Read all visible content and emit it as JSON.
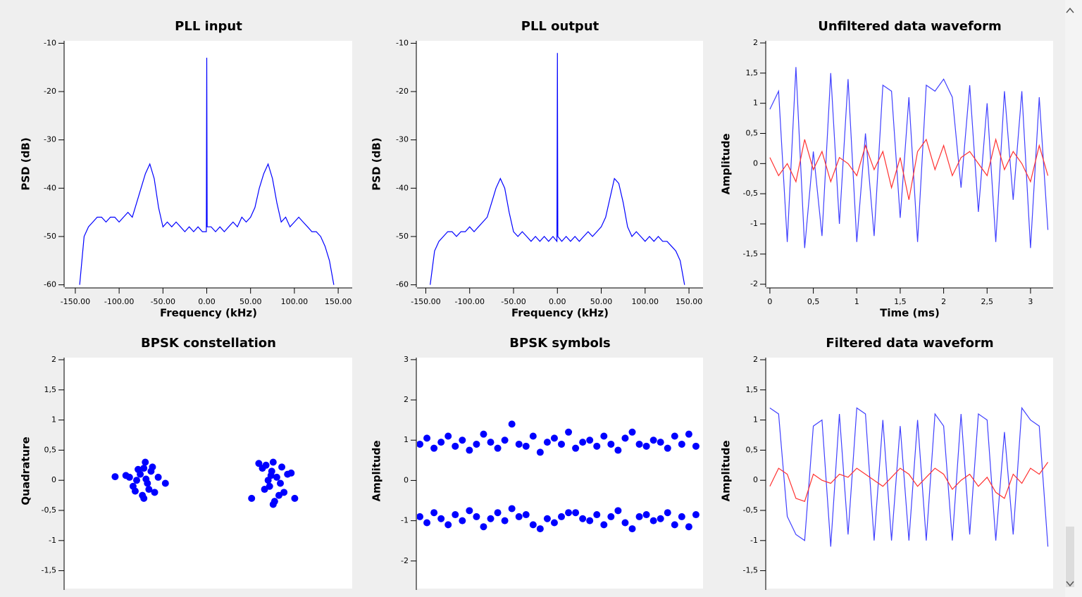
{
  "chart_data": [
    {
      "type": "line",
      "title": "PLL input",
      "xlabel": "Frequency (kHz)",
      "ylabel": "PSD (dB)",
      "x": [
        -145,
        -140,
        -135,
        -130,
        -125,
        -120,
        -115,
        -110,
        -105,
        -100,
        -95,
        -90,
        -85,
        -80,
        -75,
        -70,
        -65,
        -60,
        -55,
        -50,
        -45,
        -40,
        -35,
        -30,
        -25,
        -20,
        -15,
        -10,
        -5,
        -0.5,
        0,
        0.5,
        5,
        10,
        15,
        20,
        25,
        30,
        35,
        40,
        45,
        50,
        55,
        60,
        65,
        70,
        75,
        80,
        85,
        90,
        95,
        100,
        105,
        110,
        115,
        120,
        125,
        130,
        135,
        140,
        145
      ],
      "series": [
        {
          "color": "#0000ff",
          "values": [
            -60,
            -50,
            -48,
            -47,
            -46,
            -46,
            -47,
            -46,
            -46,
            -47,
            -46,
            -45,
            -46,
            -43,
            -40,
            -37,
            -35,
            -38,
            -44,
            -48,
            -47,
            -48,
            -47,
            -48,
            -49,
            -48,
            -49,
            -48,
            -49,
            -49,
            -13,
            -48,
            -48,
            -49,
            -48,
            -49,
            -48,
            -47,
            -48,
            -46,
            -47,
            -46,
            -44,
            -40,
            -37,
            -35,
            -38,
            -43,
            -47,
            -46,
            -48,
            -47,
            -46,
            -47,
            -48,
            -49,
            -49,
            -50,
            -52,
            -55,
            -60
          ]
        }
      ],
      "xlim": [
        -162,
        166
      ],
      "ylim": [
        -60.5,
        -9.5
      ],
      "xticks": [
        {
          "value": -150,
          "label": "-150.00"
        },
        {
          "value": -100,
          "label": "-100.00"
        },
        {
          "value": -50,
          "label": "-50.00"
        },
        {
          "value": 0,
          "label": "0.00"
        },
        {
          "value": 50,
          "label": "50.00"
        },
        {
          "value": 100,
          "label": "100.00"
        },
        {
          "value": 150,
          "label": "150.00"
        }
      ],
      "yticks": [
        -10,
        -20,
        -30,
        -40,
        -50,
        -60
      ]
    },
    {
      "type": "line",
      "title": "PLL output",
      "xlabel": "Frequency (kHz)",
      "ylabel": "PSD (dB)",
      "x": [
        -145,
        -140,
        -135,
        -130,
        -125,
        -120,
        -115,
        -110,
        -105,
        -100,
        -95,
        -90,
        -85,
        -80,
        -75,
        -70,
        -65,
        -60,
        -55,
        -50,
        -45,
        -40,
        -35,
        -30,
        -25,
        -20,
        -15,
        -10,
        -5,
        -0.5,
        0,
        0.5,
        5,
        10,
        15,
        20,
        25,
        30,
        35,
        40,
        45,
        50,
        55,
        60,
        65,
        70,
        75,
        80,
        85,
        90,
        95,
        100,
        105,
        110,
        115,
        120,
        125,
        130,
        135,
        140,
        145
      ],
      "series": [
        {
          "color": "#0000ff",
          "values": [
            -60,
            -53,
            -51,
            -50,
            -49,
            -49,
            -50,
            -49,
            -49,
            -48,
            -49,
            -48,
            -47,
            -46,
            -43,
            -40,
            -38,
            -40,
            -45,
            -49,
            -50,
            -49,
            -50,
            -51,
            -50,
            -51,
            -50,
            -51,
            -50,
            -51,
            -12,
            -50,
            -51,
            -50,
            -51,
            -50,
            -51,
            -50,
            -49,
            -50,
            -49,
            -48,
            -46,
            -42,
            -38,
            -39,
            -43,
            -48,
            -50,
            -49,
            -50,
            -51,
            -50,
            -51,
            -50,
            -51,
            -51,
            -52,
            -53,
            -55,
            -60
          ]
        }
      ],
      "xlim": [
        -160,
        166
      ],
      "ylim": [
        -60.5,
        -9.5
      ],
      "xticks": [
        {
          "value": -150,
          "label": "-150.00"
        },
        {
          "value": -100,
          "label": "-100.00"
        },
        {
          "value": -50,
          "label": "-50.00"
        },
        {
          "value": 0,
          "label": "0.00"
        },
        {
          "value": 50,
          "label": "50.00"
        },
        {
          "value": 100,
          "label": "100.00"
        },
        {
          "value": 150,
          "label": "150.00"
        }
      ],
      "yticks": [
        -10,
        -20,
        -30,
        -40,
        -50,
        -60
      ]
    },
    {
      "type": "line",
      "title": "Unfiltered data waveform",
      "xlabel": "Time (ms)",
      "ylabel": "Amplitude",
      "x": [
        0,
        0.1,
        0.2,
        0.3,
        0.4,
        0.5,
        0.6,
        0.7,
        0.8,
        0.9,
        1,
        1.1,
        1.2,
        1.3,
        1.4,
        1.5,
        1.6,
        1.7,
        1.8,
        1.9,
        2,
        2.1,
        2.2,
        2.3,
        2.4,
        2.5,
        2.6,
        2.7,
        2.8,
        2.9,
        3,
        3.1,
        3.2
      ],
      "series": [
        {
          "color": "#4040ff",
          "values": [
            0.9,
            1.2,
            -1.3,
            1.6,
            -1.4,
            0.2,
            -1.2,
            1.5,
            -1.0,
            1.4,
            -1.3,
            0.5,
            -1.2,
            1.3,
            1.2,
            -0.9,
            1.1,
            -1.3,
            1.3,
            1.2,
            1.4,
            1.1,
            -0.4,
            1.3,
            -0.8,
            1.0,
            -1.3,
            1.2,
            -0.6,
            1.2,
            -1.4,
            1.1,
            -1.1
          ]
        },
        {
          "color": "#ff3030",
          "values": [
            0.1,
            -0.2,
            0.0,
            -0.3,
            0.4,
            -0.1,
            0.2,
            -0.3,
            0.1,
            0.0,
            -0.2,
            0.3,
            -0.1,
            0.2,
            -0.4,
            0.1,
            -0.6,
            0.2,
            0.4,
            -0.1,
            0.3,
            -0.2,
            0.1,
            0.2,
            0.0,
            -0.2,
            0.4,
            -0.1,
            0.2,
            0.0,
            -0.3,
            0.3,
            -0.2
          ]
        }
      ],
      "xlim": [
        -0.04,
        3.26
      ],
      "ylim": [
        -2.05,
        2.035
      ],
      "xticks": [
        0,
        {
          "value": 0.5,
          "label": "0,5"
        },
        1,
        {
          "value": 1.5,
          "label": "1,5"
        },
        2,
        {
          "value": 2.5,
          "label": "2,5"
        },
        3
      ],
      "yticks": [
        2,
        {
          "value": 1.5,
          "label": "1,5"
        },
        1,
        {
          "value": 0.5,
          "label": "0,5"
        },
        0,
        {
          "value": -0.5,
          "label": "-0,5"
        },
        -1,
        {
          "value": -1.5,
          "label": "-1,5"
        },
        -2
      ]
    },
    {
      "type": "scatter",
      "title": "BPSK constellation",
      "ylabel": "Quadrature",
      "series": [
        {
          "color": "#0000ff",
          "x": [
            -0.95,
            -0.85,
            -0.9,
            -1.05,
            -0.8,
            -0.75,
            -1.1,
            -0.92,
            -0.88,
            -1.0,
            -0.7,
            -0.98,
            -0.83,
            -1.15,
            -0.9,
            -0.78,
            -1.02,
            -0.87,
            -0.6,
            -1.3,
            0.75,
            0.85,
            0.9,
            0.95,
            1.05,
            0.8,
            1.1,
            0.92,
            0.88,
            1.0,
            0.7,
            0.98,
            0.83,
            1.15,
            0.9,
            0.78,
            1.02,
            0.87,
            1.2,
            0.6
          ],
          "values": [
            0.1,
            -0.05,
            0.2,
            -0.1,
            0.15,
            -0.2,
            0.05,
            -0.25,
            0.3,
            0.0,
            0.05,
            0.18,
            -0.15,
            0.08,
            -0.3,
            0.22,
            -0.18,
            0.02,
            -0.05,
            0.06,
            0.2,
            -0.1,
            0.3,
            0.05,
            -0.2,
            0.25,
            0.1,
            -0.35,
            0.15,
            -0.05,
            0.28,
            -0.25,
            0.0,
            0.12,
            -0.4,
            -0.15,
            0.22,
            0.08,
            -0.3,
            -0.3
          ]
        }
      ],
      "xlim": [
        -2,
        2
      ],
      "ylim": [
        -1.82,
        2.035
      ],
      "yticks": [
        2,
        {
          "value": 1.5,
          "label": "1,5"
        },
        1,
        {
          "value": 0.5,
          "label": "0,5"
        },
        0,
        {
          "value": -0.5,
          "label": "-0,5"
        },
        -1,
        {
          "value": -1.5,
          "label": "-1,5"
        }
      ]
    },
    {
      "type": "scatter",
      "title": "BPSK symbols",
      "ylabel": "Amplitude",
      "x": [
        0,
        25,
        50,
        75,
        100,
        125,
        150,
        175,
        200,
        225,
        250,
        275,
        300,
        325,
        350,
        375,
        400,
        425,
        450,
        475,
        500,
        525,
        550,
        575,
        600,
        625,
        650,
        675,
        700,
        725,
        750,
        775,
        800,
        825,
        850,
        875,
        900,
        925,
        950,
        975
      ],
      "series": [
        {
          "color": "#0000ff",
          "values": [
            0.9,
            1.05,
            0.8,
            0.95,
            1.1,
            0.85,
            1.0,
            0.75,
            0.9,
            1.15,
            0.95,
            0.8,
            1.0,
            1.4,
            0.9,
            0.85,
            1.1,
            0.7,
            0.95,
            1.05,
            0.9,
            1.2,
            0.8,
            0.95,
            1.0,
            0.85,
            1.1,
            0.9,
            0.75,
            1.05,
            1.2,
            0.9,
            0.85,
            1.0,
            0.95,
            0.8,
            1.1,
            0.9,
            1.15,
            0.85
          ]
        },
        {
          "color": "#0000ff",
          "values": [
            -0.9,
            -1.05,
            -0.8,
            -0.95,
            -1.1,
            -0.85,
            -1.0,
            -0.75,
            -0.9,
            -1.15,
            -0.95,
            -0.8,
            -1.0,
            -0.7,
            -0.9,
            -0.85,
            -1.1,
            -1.2,
            -0.95,
            -1.05,
            -0.9,
            -0.8,
            -0.8,
            -0.95,
            -1.0,
            -0.85,
            -1.1,
            -0.9,
            -0.75,
            -1.05,
            -1.2,
            -0.9,
            -0.85,
            -1.0,
            -0.95,
            -0.8,
            -1.1,
            -0.9,
            -1.15,
            -0.85
          ]
        }
      ],
      "xlim": [
        -10,
        1000
      ],
      "ylim": [
        -2.72,
        3.05
      ],
      "yticks": [
        3,
        2,
        1,
        0,
        -1,
        -2
      ]
    },
    {
      "type": "line",
      "title": "Filtered data waveform",
      "ylabel": "Amplitude",
      "x": [
        0,
        0.1,
        0.2,
        0.3,
        0.4,
        0.5,
        0.6,
        0.7,
        0.8,
        0.9,
        1,
        1.1,
        1.2,
        1.3,
        1.4,
        1.5,
        1.6,
        1.7,
        1.8,
        1.9,
        2,
        2.1,
        2.2,
        2.3,
        2.4,
        2.5,
        2.6,
        2.7,
        2.8,
        2.9,
        3,
        3.1,
        3.2
      ],
      "series": [
        {
          "color": "#4040ff",
          "values": [
            1.2,
            1.1,
            -0.6,
            -0.9,
            -1.0,
            0.9,
            1.0,
            -1.1,
            1.1,
            -0.9,
            1.2,
            1.1,
            -1.0,
            1.0,
            -1.0,
            0.9,
            -1.0,
            1.0,
            -1.0,
            1.1,
            0.9,
            -1.0,
            1.1,
            -0.9,
            1.1,
            1.0,
            -1.0,
            0.8,
            -0.9,
            1.2,
            1.0,
            0.9,
            -1.1
          ]
        },
        {
          "color": "#ff3030",
          "values": [
            -0.1,
            0.2,
            0.1,
            -0.3,
            -0.35,
            0.1,
            0.0,
            -0.05,
            0.1,
            0.05,
            0.2,
            0.1,
            0.0,
            -0.1,
            0.05,
            0.2,
            0.1,
            -0.1,
            0.05,
            0.2,
            0.1,
            -0.15,
            0.0,
            0.1,
            -0.1,
            0.05,
            -0.2,
            -0.3,
            0.1,
            -0.05,
            0.2,
            0.1,
            0.3
          ]
        }
      ],
      "xlim": [
        -0.04,
        3.26
      ],
      "ylim": [
        -1.82,
        2.035
      ],
      "yticks": [
        2,
        {
          "value": 1.5,
          "label": "1,5"
        },
        1,
        {
          "value": 0.5,
          "label": "0,5"
        },
        0,
        {
          "value": -0.5,
          "label": "-0,5"
        },
        -1,
        {
          "value": -1.5,
          "label": "-1,5"
        }
      ]
    }
  ]
}
